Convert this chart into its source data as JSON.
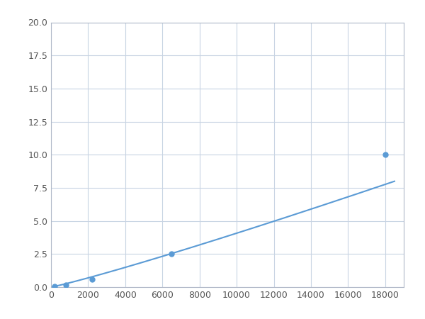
{
  "x_points": [
    200,
    800,
    2200,
    6500,
    18000
  ],
  "y_points": [
    0.08,
    0.18,
    0.6,
    2.5,
    10.0
  ],
  "line_color": "#5b9bd5",
  "marker_color": "#5b9bd5",
  "marker_size": 5,
  "linewidth": 1.5,
  "xlim": [
    0,
    19000
  ],
  "ylim": [
    0,
    20.0
  ],
  "xticks": [
    0,
    2000,
    4000,
    6000,
    8000,
    10000,
    12000,
    14000,
    16000,
    18000
  ],
  "yticks": [
    0.0,
    2.5,
    5.0,
    7.5,
    10.0,
    12.5,
    15.0,
    17.5,
    20.0
  ],
  "grid_color": "#c8d4e3",
  "background_color": "#ffffff",
  "fig_bg_color": "#ffffff",
  "tick_labelsize": 9,
  "tick_color": "#555555"
}
